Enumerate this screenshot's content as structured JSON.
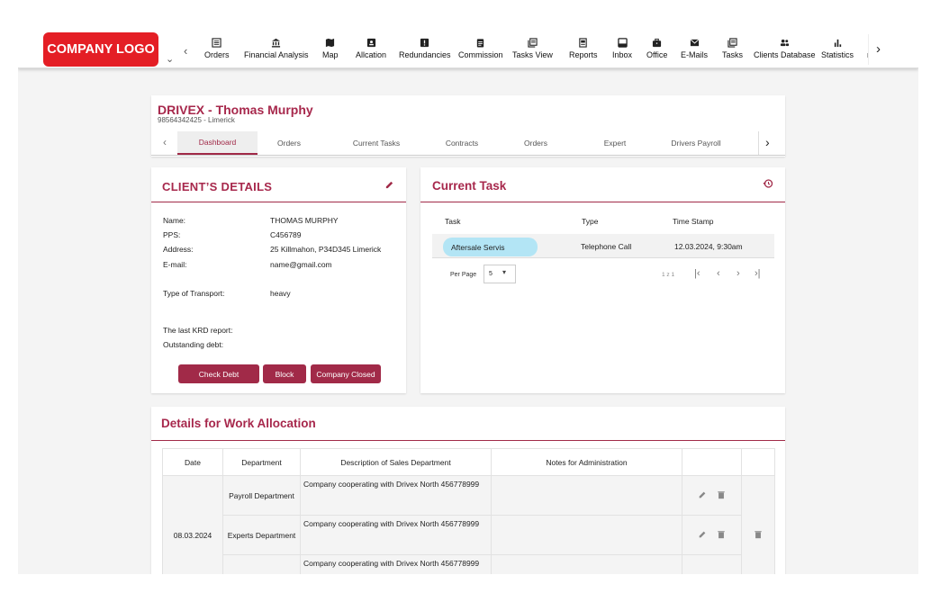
{
  "logo": {
    "text": "COMPANY LOGO"
  },
  "nav": {
    "items": [
      {
        "label": "Orders",
        "icon": "list-icon"
      },
      {
        "label": "Financial Analysis",
        "icon": "bank-icon"
      },
      {
        "label": "Map",
        "icon": "map-icon"
      },
      {
        "label": "Allcation",
        "icon": "badge-icon"
      },
      {
        "label": "Redundancies",
        "icon": "alert-icon"
      },
      {
        "label": "Commission",
        "icon": "clipboard-icon"
      },
      {
        "label": "Tasks View",
        "icon": "tasks-icon"
      },
      {
        "label": "Reports",
        "icon": "report-icon"
      },
      {
        "label": "Inbox",
        "icon": "inbox-icon"
      },
      {
        "label": "Office",
        "icon": "briefcase-icon"
      },
      {
        "label": "E-Mails",
        "icon": "mail-icon"
      },
      {
        "label": "Tasks",
        "icon": "tasks-icon"
      },
      {
        "label": "Clients Database",
        "icon": "people-icon"
      },
      {
        "label": "Statistics",
        "icon": "bar-chart-icon"
      }
    ],
    "overflow_label": "P"
  },
  "client": {
    "title": "DRIVEX - Thomas Murphy",
    "subtitle": "98564342425  - Limerick",
    "tabs": [
      "Dashboard",
      "Orders",
      "Current Tasks",
      "Contracts",
      "Orders",
      "Expert",
      "Drivers Payroll"
    ]
  },
  "details": {
    "heading": "CLIENT’S DETAILS",
    "fields": [
      {
        "label": "Name:",
        "value": "THOMAS MURPHY"
      },
      {
        "label": "PPS:",
        "value": "C456789"
      },
      {
        "label": "Address:",
        "value": "25 Killmahon, P34D345 Limerick"
      },
      {
        "label": "E-mail:",
        "value": "name@gmail.com"
      },
      {
        "label": "Type of Transport:",
        "value": "heavy"
      },
      {
        "label": "The last KRD report:",
        "value": ""
      },
      {
        "label": "Outstanding debt:",
        "value": ""
      }
    ],
    "buttons": {
      "check_debt": "Check Debt",
      "block": "Block",
      "company_closed": "Company Closed"
    }
  },
  "current_task": {
    "heading": "Current Task",
    "columns": [
      "Task",
      "Type",
      "Time Stamp"
    ],
    "rows": [
      {
        "task": "Aftersale Servis",
        "type": "Telephone Call",
        "time": "12.03.2024, 9:30am"
      }
    ],
    "per_page_label": "Per Page",
    "per_page_value": "5",
    "range": "1 z 1"
  },
  "work_allocation": {
    "heading": "Details for Work Allocation",
    "columns": [
      "Date",
      "Department",
      "Description of Sales Department",
      "Notes for Administration",
      "",
      ""
    ],
    "date": "08.03.2024",
    "rows": [
      {
        "department": "Payroll Department",
        "description": "Company cooperating with Drivex North 456778999",
        "notes": ""
      },
      {
        "department": "Experts Department",
        "description": "Company cooperating with Drivex North 456778999",
        "notes": ""
      },
      {
        "department": "",
        "description": "Company cooperating with Drivex North 456778999",
        "notes": ""
      }
    ]
  },
  "colors": {
    "brand": "#a12a48",
    "logo": "#e41e25",
    "chip": "#b3e5f5"
  }
}
